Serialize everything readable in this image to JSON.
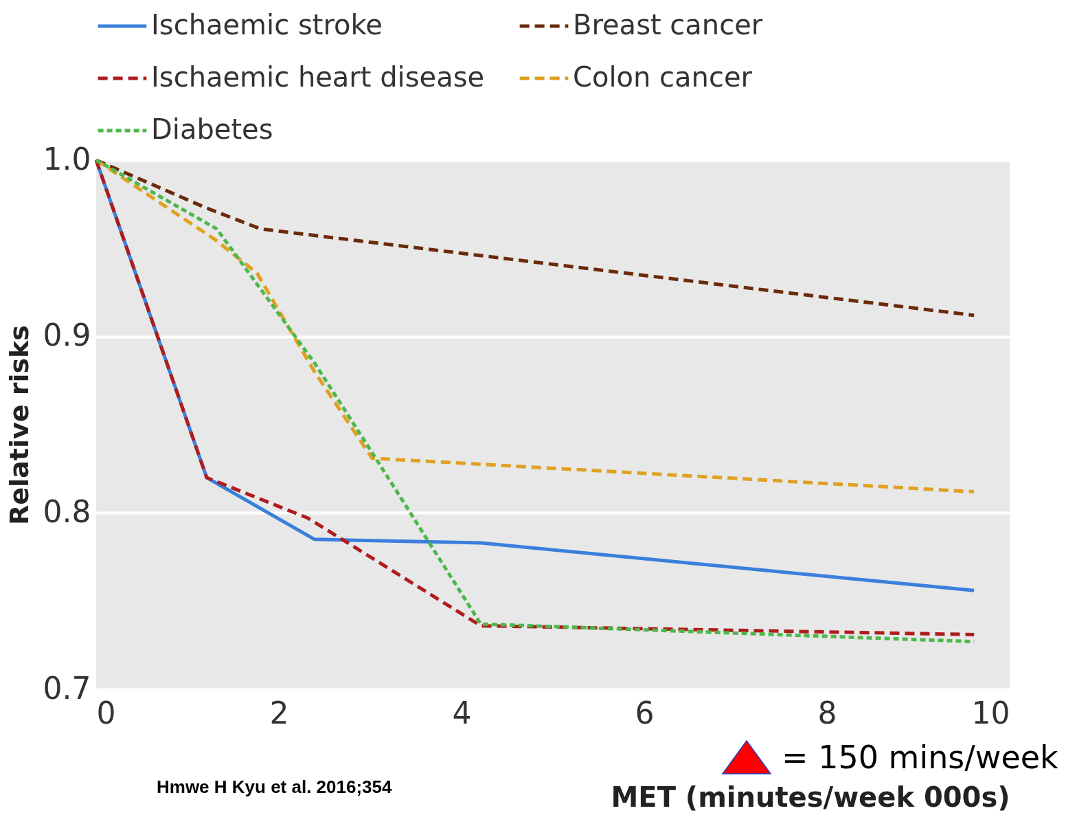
{
  "chart_data": {
    "type": "line",
    "xlabel": "MET (minutes/week 000s)",
    "ylabel": "Relative risks",
    "xlim": [
      0,
      10
    ],
    "xticks": [
      0,
      2,
      4,
      6,
      8,
      10
    ],
    "ylim": [
      0.7,
      1.0
    ],
    "yticks": [
      0.7,
      0.8,
      0.9,
      {
        "value": 1.0,
        "label": "1.0"
      }
    ],
    "grid": "y",
    "legend": "top",
    "marker": "none",
    "series": [
      {
        "name": "Ischaemic stroke",
        "color": "#3a7fdc",
        "line_style": "solid",
        "x": [
          0,
          1.21,
          2.39,
          4.21,
          9.61
        ],
        "values": [
          1.0,
          0.82,
          0.785,
          0.783,
          0.756
        ]
      },
      {
        "name": "Breast cancer",
        "color": "#6b2a0a",
        "line_style": "dashed",
        "x": [
          0,
          1.2,
          1.8,
          9.61
        ],
        "values": [
          1.0,
          0.973,
          0.961,
          0.912
        ]
      },
      {
        "name": "Ischaemic heart disease",
        "color": "#b01c1c",
        "line_style": "dashed",
        "x": [
          0,
          1.21,
          2.32,
          4.21,
          9.61
        ],
        "values": [
          1.0,
          0.82,
          0.797,
          0.736,
          0.731
        ]
      },
      {
        "name": "Colon cancer",
        "color": "#e0a020",
        "line_style": "dashed",
        "x": [
          0,
          1.3,
          1.76,
          2.39,
          3.02,
          9.61
        ],
        "values": [
          1.0,
          0.955,
          0.936,
          0.88,
          0.831,
          0.812
        ]
      },
      {
        "name": "Diabetes",
        "color": "#4cb84c",
        "line_style": "dotted",
        "x": [
          0,
          1.32,
          2.39,
          3.06,
          4.21,
          9.61
        ],
        "values": [
          1.0,
          0.961,
          0.885,
          0.831,
          0.737,
          0.727
        ]
      }
    ],
    "annotations": [
      "= 150 mins/week",
      "Hmwe H Kyu et al. 2016;354"
    ]
  }
}
